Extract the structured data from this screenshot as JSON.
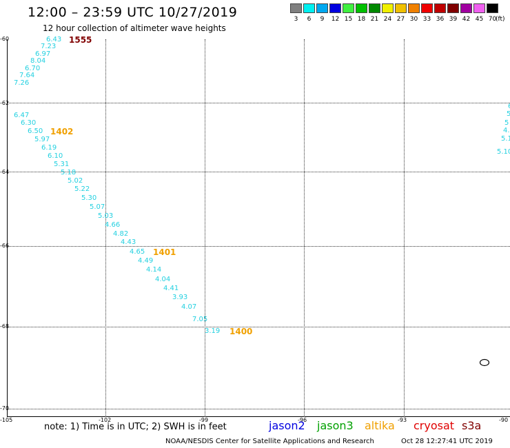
{
  "title": "12:00 – 23:59 UTC 10/27/2019",
  "subtitle": "12 hour collection of altimeter wave heights",
  "legend": {
    "unit": "(ft)",
    "items": [
      {
        "label": "3",
        "color": "#808080"
      },
      {
        "label": "6",
        "color": "#00f0f0"
      },
      {
        "label": "9",
        "color": "#00a8f0"
      },
      {
        "label": "12",
        "color": "#0000e0"
      },
      {
        "label": "15",
        "color": "#40f040"
      },
      {
        "label": "18",
        "color": "#00c000"
      },
      {
        "label": "21",
        "color": "#008800"
      },
      {
        "label": "24",
        "color": "#f0f000"
      },
      {
        "label": "27",
        "color": "#f0c000"
      },
      {
        "label": "30",
        "color": "#f08000"
      },
      {
        "label": "33",
        "color": "#f00000"
      },
      {
        "label": "36",
        "color": "#c00000"
      },
      {
        "label": "39",
        "color": "#800000"
      },
      {
        "label": "42",
        "color": "#a000a0"
      },
      {
        "label": "45",
        "color": "#f060f0"
      },
      {
        "label": "70",
        "color": "#000000"
      }
    ]
  },
  "axes": {
    "lat_labels": [
      "-60",
      "-62",
      "-64",
      "-66",
      "-68",
      "-70"
    ],
    "lon_labels": [
      "-105",
      "-102",
      "-99",
      "-96",
      "-93",
      "-90"
    ]
  },
  "tracks": [
    {
      "id": "1555",
      "color": "#800000"
    },
    {
      "id": "1402",
      "color": "#f0a000"
    },
    {
      "id": "1401",
      "color": "#f0a000"
    },
    {
      "id": "1400",
      "color": "#f0a000"
    }
  ],
  "swh_values": {
    "track_1555": [
      "6.43",
      "7.23",
      "6.97",
      "8.04",
      "6.70",
      "7.64",
      "7.26"
    ],
    "track_main": [
      "6.47",
      "6.30",
      "6.50",
      "5.97",
      "6.19",
      "6.10",
      "5.31",
      "5.18",
      "5.02",
      "5.22",
      "5.30",
      "5.07",
      "5.03",
      "4.66",
      "4.82",
      "4.43",
      "4.65",
      "4.49",
      "4.14",
      "4.04",
      "4.41",
      "3.93",
      "4.07",
      "7.05",
      "3.19"
    ],
    "edge": [
      "6",
      "5",
      "5",
      "4.8",
      "5.1",
      "5.10"
    ]
  },
  "footer": {
    "note": "note:  1) Time is in UTC;  2) SWH is in feet",
    "satellites": [
      {
        "name": "jason2",
        "color": "#0000e0"
      },
      {
        "name": "jason3",
        "color": "#00a000"
      },
      {
        "name": "altika",
        "color": "#f0a000"
      },
      {
        "name": "cryosat",
        "color": "#e00000"
      },
      {
        "name": "s3a",
        "color": "#800000"
      }
    ],
    "credit": "NOAA/NESDIS Center for Satellite Applications and Research",
    "timestamp": "Oct 28 12:27:41 UTC 2019"
  }
}
